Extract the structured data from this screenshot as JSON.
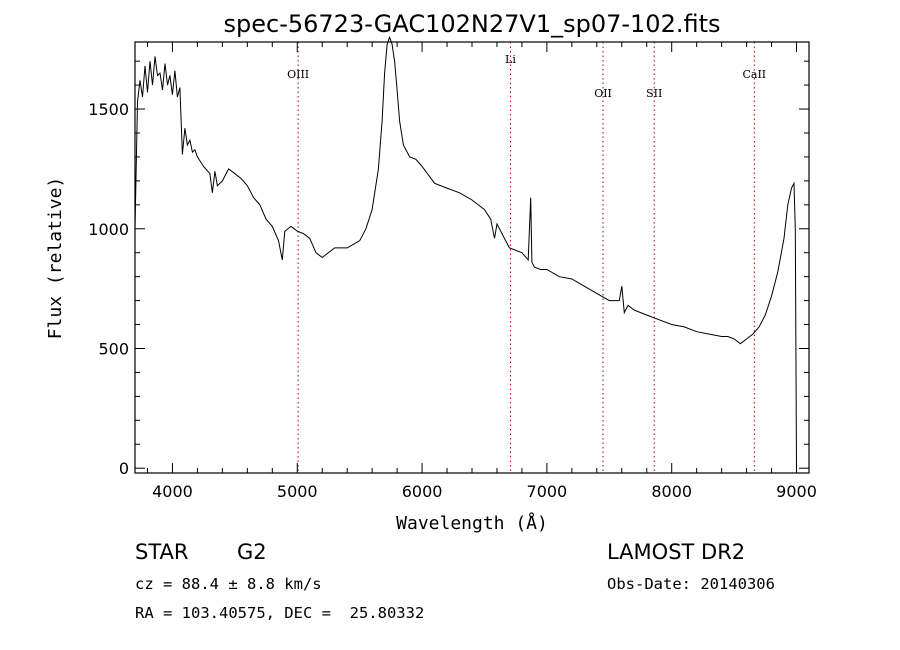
{
  "chart_data": {
    "type": "line",
    "title": "spec-56723-GAC102N27V1_sp07-102.fits",
    "xlabel": "Wavelength (Å)",
    "ylabel": "Flux (relative)",
    "xlim": [
      3700,
      9100
    ],
    "ylim": [
      -20,
      1780
    ],
    "x_ticks": [
      4000,
      5000,
      6000,
      7000,
      8000,
      9000
    ],
    "y_ticks": [
      0,
      500,
      1000,
      1500
    ],
    "grid": false,
    "lines": [
      {
        "label": "OIII",
        "x": 5007
      },
      {
        "label": "Li",
        "x": 6708
      },
      {
        "label": "OII",
        "x": 7450
      },
      {
        "label": "SII",
        "x": 7860
      },
      {
        "label": "CaII",
        "x": 8662
      }
    ],
    "series": [
      {
        "x": [
          3700,
          3720,
          3740,
          3760,
          3780,
          3800,
          3820,
          3840,
          3860,
          3880,
          3900,
          3920,
          3940,
          3960,
          3980,
          4000,
          4020,
          4040,
          4060,
          4080,
          4100,
          4120,
          4140,
          4160,
          4180,
          4200,
          4250,
          4300,
          4320,
          4340,
          4360,
          4400,
          4450,
          4500,
          4550,
          4600,
          4650,
          4700,
          4750,
          4800,
          4850,
          4880,
          4900,
          4950,
          5000,
          5050,
          5100,
          5150,
          5200,
          5300,
          5400,
          5500,
          5550,
          5600,
          5650,
          5680,
          5700,
          5720,
          5740,
          5760,
          5780,
          5800,
          5820,
          5850,
          5900,
          5950,
          6000,
          6100,
          6200,
          6300,
          6400,
          6500,
          6550,
          6565,
          6580,
          6600,
          6700,
          6800,
          6850,
          6870,
          6880,
          6900,
          6950,
          7000,
          7100,
          7200,
          7300,
          7400,
          7500,
          7580,
          7600,
          7620,
          7650,
          7700,
          7800,
          7900,
          8000,
          8100,
          8200,
          8300,
          8400,
          8450,
          8500,
          8550,
          8600,
          8650,
          8700,
          8750,
          8800,
          8850,
          8900,
          8930,
          8960,
          8980,
          8990,
          9000
        ],
        "values": [
          1000,
          1530,
          1620,
          1550,
          1680,
          1570,
          1700,
          1600,
          1720,
          1640,
          1650,
          1580,
          1690,
          1600,
          1640,
          1560,
          1660,
          1550,
          1590,
          1310,
          1420,
          1350,
          1370,
          1320,
          1330,
          1300,
          1260,
          1230,
          1150,
          1240,
          1180,
          1200,
          1250,
          1230,
          1210,
          1180,
          1130,
          1100,
          1040,
          1010,
          950,
          870,
          990,
          1010,
          990,
          980,
          960,
          900,
          880,
          920,
          920,
          950,
          1000,
          1080,
          1250,
          1450,
          1650,
          1770,
          1800,
          1770,
          1700,
          1580,
          1450,
          1350,
          1300,
          1290,
          1260,
          1190,
          1170,
          1150,
          1120,
          1080,
          1040,
          1000,
          960,
          1020,
          920,
          900,
          870,
          1130,
          860,
          840,
          830,
          830,
          800,
          790,
          760,
          730,
          700,
          700,
          760,
          650,
          680,
          660,
          640,
          620,
          600,
          590,
          570,
          560,
          550,
          550,
          540,
          520,
          540,
          560,
          590,
          640,
          720,
          820,
          960,
          1100,
          1170,
          1190,
          1000,
          0
        ]
      }
    ]
  },
  "info": {
    "object_type": "STAR",
    "subclass": "G2",
    "survey": "LAMOST DR2",
    "redshift": "cz = 88.4 ± 8.8 km/s",
    "obs_date": "Obs-Date: 20140306",
    "coords": "RA = 103.40575, DEC =  25.80332"
  }
}
